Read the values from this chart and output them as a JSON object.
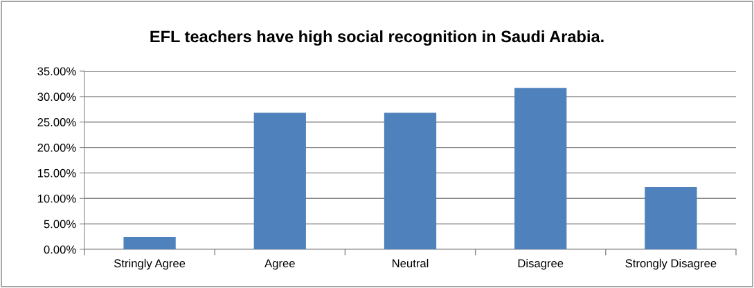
{
  "chart_data": {
    "type": "bar",
    "title": "EFL teachers have high social recognition in Saudi Arabia.",
    "categories": [
      "Stringly Agree",
      "Agree",
      "Neutral",
      "Disagree",
      "Strongly Disagree"
    ],
    "values": [
      2.44,
      26.83,
      26.83,
      31.71,
      12.2
    ],
    "color": "#4f81bd",
    "ylim": [
      0,
      35
    ],
    "yticks": [
      {
        "value": 0,
        "label": "0.00%"
      },
      {
        "value": 5,
        "label": "5.00%"
      },
      {
        "value": 10,
        "label": "10.00%"
      },
      {
        "value": 15,
        "label": "15.00%"
      },
      {
        "value": 20,
        "label": "20.00%"
      },
      {
        "value": 25,
        "label": "25.00%"
      },
      {
        "value": 30,
        "label": "30.00%"
      },
      {
        "value": 35,
        "label": "35.00%"
      }
    ],
    "grid": "y",
    "legend": false
  }
}
